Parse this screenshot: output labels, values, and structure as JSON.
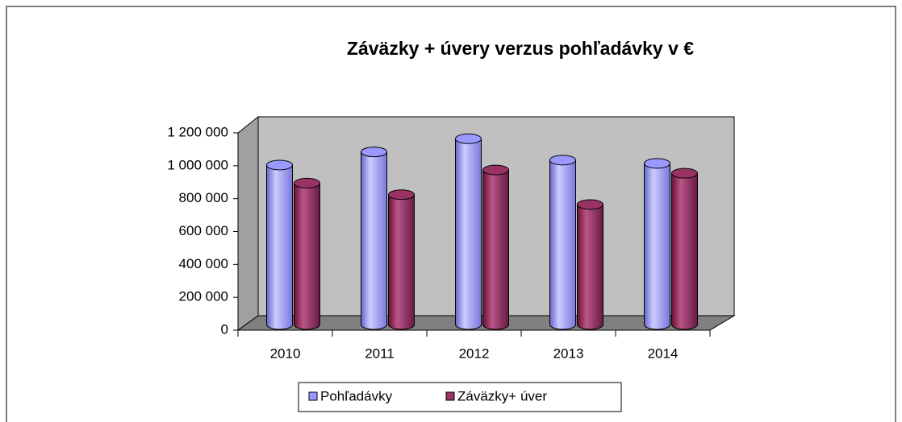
{
  "chart_data": {
    "type": "bar3d",
    "title": "Záväzky + úvery verzus pohľadávky v €",
    "categories": [
      "2010",
      "2011",
      "2012",
      "2013",
      "2014"
    ],
    "series": [
      {
        "name": "Pohľadávky",
        "color": "#9999ff",
        "values": [
          970000,
          1050000,
          1130000,
          1000000,
          980000
        ]
      },
      {
        "name": "Záväzky+ úver",
        "color": "#993366",
        "values": [
          860000,
          790000,
          940000,
          730000,
          920000
        ]
      }
    ],
    "ylim": [
      0,
      1200000
    ],
    "yticks": [
      0,
      {
        "value": 200000,
        "label": "200 000"
      },
      {
        "value": 400000,
        "label": "400 000"
      },
      {
        "value": 600000,
        "label": "600 000"
      },
      {
        "value": 800000,
        "label": "800 000"
      },
      {
        "value": 1000000,
        "label": "1 000 000"
      },
      {
        "value": 1200000,
        "label": "1 200 000"
      }
    ],
    "legend": "bottom"
  }
}
